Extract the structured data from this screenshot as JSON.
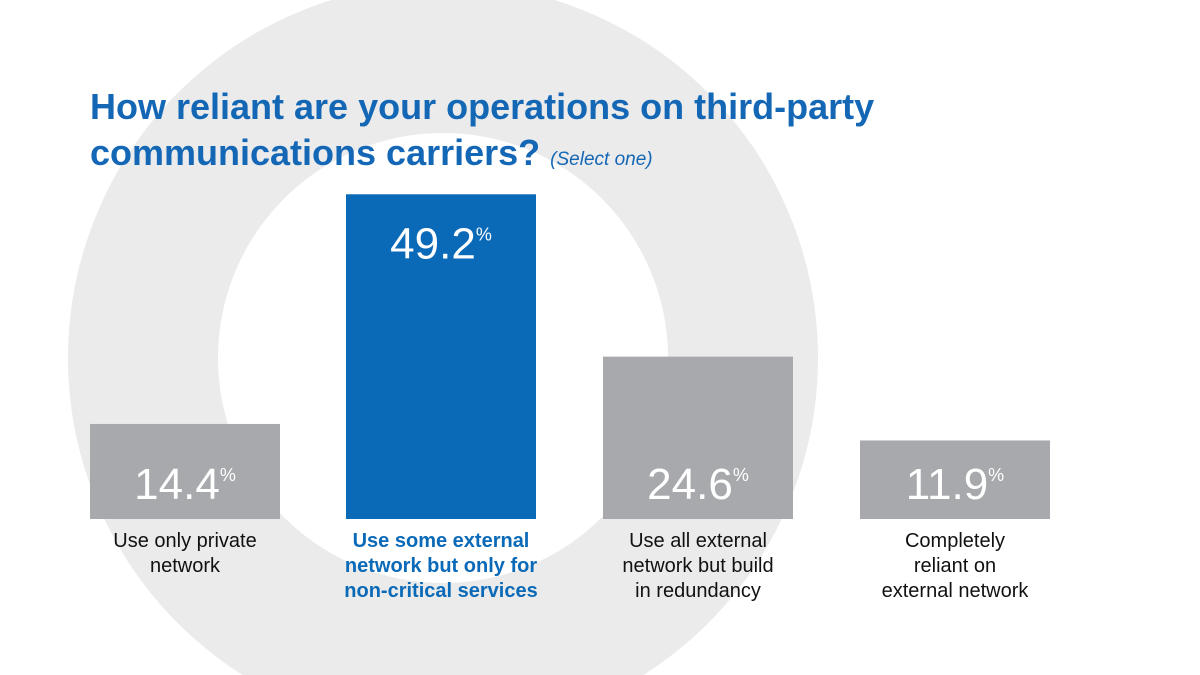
{
  "colors": {
    "accent": "#0a6ab8",
    "bar_default": "#a7a9ac",
    "ring": "#ebebeb",
    "title": "#1467b5",
    "label_default": "#111111",
    "value_text": "#ffffff"
  },
  "chart_data": {
    "type": "bar",
    "title": "How reliant are your operations on third-party communications carriers?",
    "subtitle": "(Select one)",
    "categories": [
      "Use only private network",
      "Use some external network but only for non-critical services",
      "Use all external network but build in redundancy",
      "Completely reliant on external network"
    ],
    "category_label_lines": [
      [
        "Use only private",
        "network"
      ],
      [
        "Use some external",
        "network but only for",
        "non-critical services"
      ],
      [
        "Use all external",
        "network but build",
        "in redundancy"
      ],
      [
        "Completely",
        "reliant on",
        "external network"
      ]
    ],
    "values": [
      14.4,
      49.2,
      24.6,
      11.9
    ],
    "value_labels": [
      "14.4",
      "49.2",
      "24.6",
      "11.9"
    ],
    "unit": "%",
    "highlight_index": 1,
    "ylim": [
      0,
      50
    ],
    "grid": false,
    "legend": "none"
  }
}
